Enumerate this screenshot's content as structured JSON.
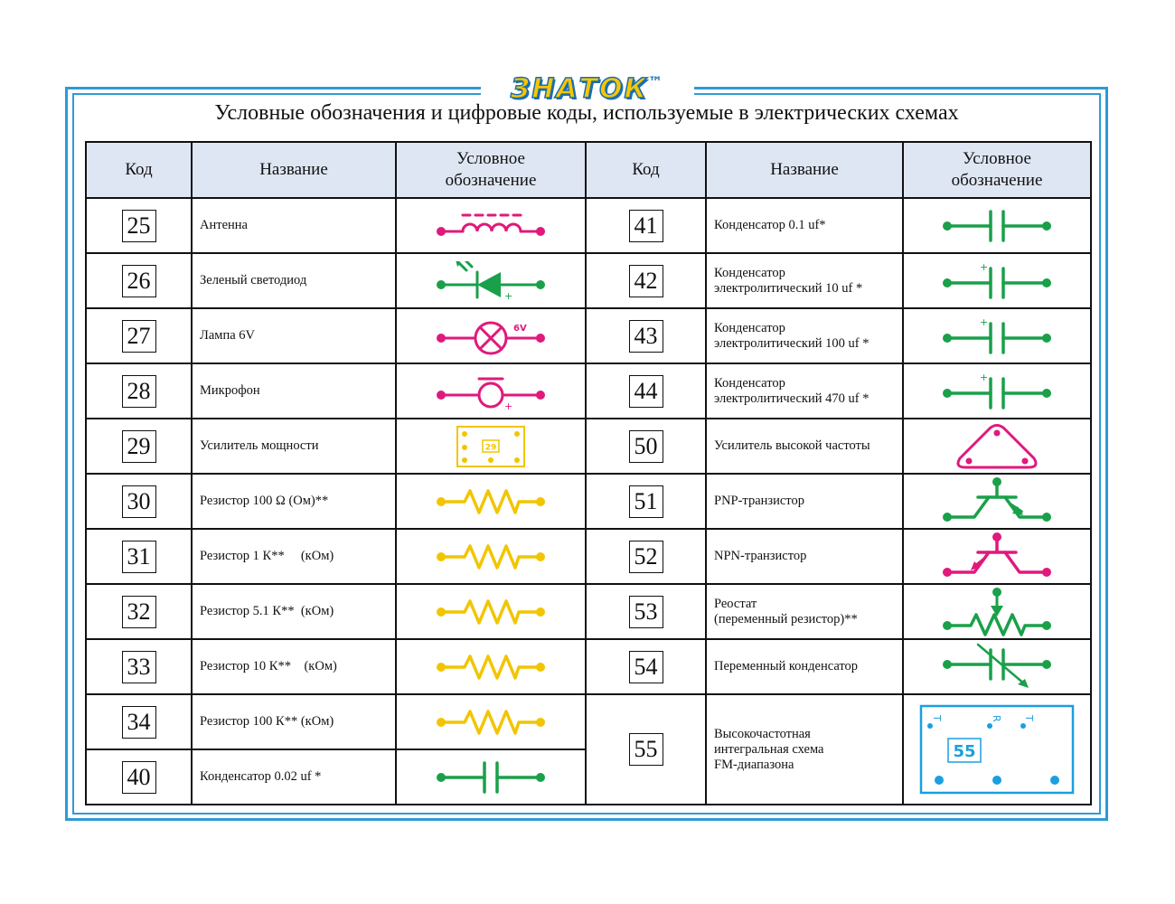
{
  "brand": {
    "logo": "ЗНАТОК",
    "tm": "™"
  },
  "title": "Условные обозначения и цифровые коды, используемые в электрических схемах",
  "headers": {
    "code": "Код",
    "name": "Название",
    "symbol_l1": "Условное",
    "symbol_l2": "обозначение"
  },
  "left_rows": [
    {
      "code": "25",
      "name": "Антенна",
      "symbol": "antenna-icon"
    },
    {
      "code": "26",
      "name": "Зеленый светодиод",
      "symbol": "led-icon"
    },
    {
      "code": "27",
      "name": "Лампа 6V",
      "symbol": "lamp-icon",
      "label": "6V"
    },
    {
      "code": "28",
      "name": "Микрофон",
      "symbol": "microphone-icon"
    },
    {
      "code": "29",
      "name": "Усилитель мощности",
      "symbol": "power-amplifier-icon",
      "label": "29"
    },
    {
      "code": "30",
      "name": "Резистор 100 Ω (Ом)**",
      "symbol": "resistor-icon"
    },
    {
      "code": "31",
      "name": "Резистор 1 К**     (кОм)",
      "symbol": "resistor-icon"
    },
    {
      "code": "32",
      "name": "Резистор 5.1 К**  (кОм)",
      "symbol": "resistor-icon"
    },
    {
      "code": "33",
      "name": "Резистор 10 К**    (кОм)",
      "symbol": "resistor-icon"
    },
    {
      "code": "34",
      "name": "Резистор 100 К** (кОм)",
      "symbol": "resistor-icon"
    },
    {
      "code": "40",
      "name": "Конденсатор 0.02 uf *",
      "symbol": "capacitor-icon"
    }
  ],
  "right_rows": [
    {
      "code": "41",
      "name_l1": "Конденсатор 0.1 uf*",
      "name_l2": "",
      "symbol": "capacitor-icon"
    },
    {
      "code": "42",
      "name_l1": "Конденсатор",
      "name_l2": "электролитический 10 uf *",
      "symbol": "electrolytic-capacitor-icon"
    },
    {
      "code": "43",
      "name_l1": "Конденсатор",
      "name_l2": "электролитический 100 uf *",
      "symbol": "electrolytic-capacitor-icon"
    },
    {
      "code": "44",
      "name_l1": "Конденсатор",
      "name_l2": "электролитический 470 uf *",
      "symbol": "electrolytic-capacitor-icon"
    },
    {
      "code": "50",
      "name_l1": "Усилитель высокой частоты",
      "name_l2": "",
      "symbol": "rf-amplifier-icon"
    },
    {
      "code": "51",
      "name_l1": "PNP-транзистор",
      "name_l2": "",
      "symbol": "pnp-transistor-icon"
    },
    {
      "code": "52",
      "name_l1": "NPN-транзистор",
      "name_l2": "",
      "symbol": "npn-transistor-icon"
    },
    {
      "code": "53",
      "name_l1": "Реостат",
      "name_l2": "(переменный резистор)**",
      "symbol": "rheostat-icon"
    },
    {
      "code": "54",
      "name_l1": "Переменный конденсатор",
      "name_l2": "",
      "symbol": "variable-capacitor-icon"
    }
  ],
  "ic_row": {
    "code": "55",
    "name_l1": "Высокочастотная",
    "name_l2": "интегральная схема",
    "name_l3": "FM-диапазона",
    "symbol": "fm-ic-icon",
    "label": "55",
    "pin_labels": [
      "T",
      "R",
      "T"
    ]
  },
  "colors": {
    "frame": "#2e9ad6",
    "header_bg": "#dfe6f3",
    "magenta": "#e0197d",
    "green": "#1aa04a",
    "yellow": "#f2c500",
    "cyan": "#1a9fe0"
  }
}
